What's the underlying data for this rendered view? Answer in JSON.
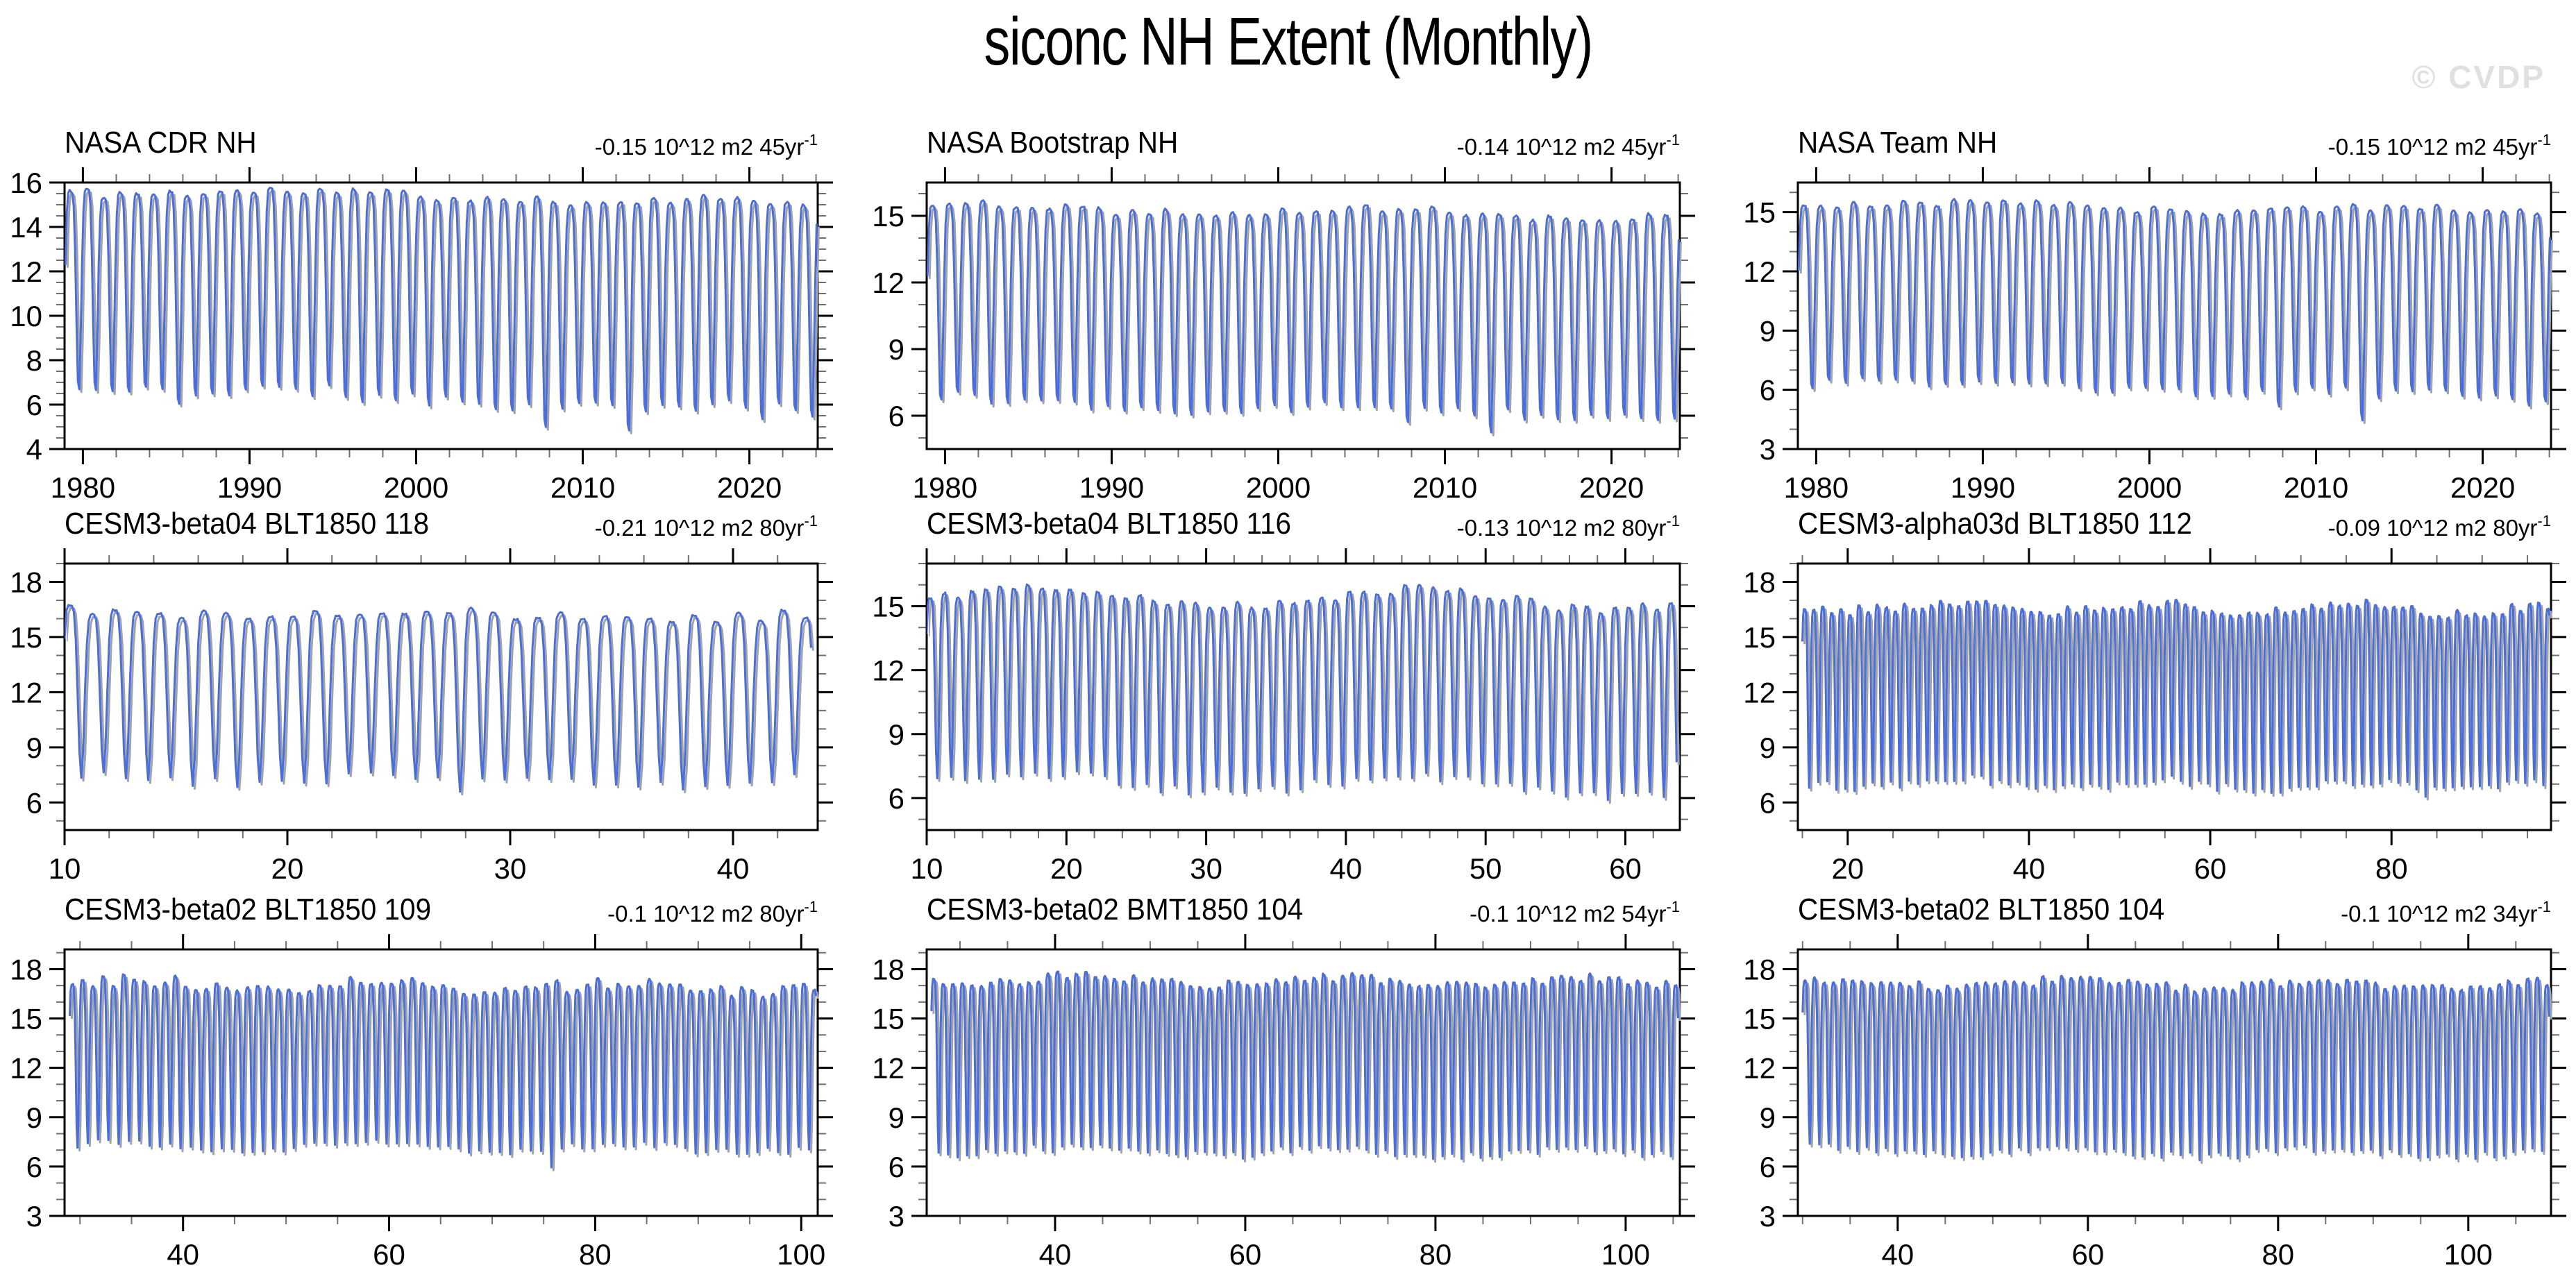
{
  "page": {
    "title": "siconc NH Extent (Monthly)",
    "watermark": "© CVDP"
  },
  "colors": {
    "line": "#4a6edb",
    "shadow": "#a3a3a3",
    "axis": "#000000",
    "minor_tick": "#707070",
    "label": "#000000",
    "watermark": "#e0e0e0",
    "background": "#ffffff"
  },
  "chart_data": [
    {
      "type": "line",
      "title": "NASA CDR NH",
      "trend": {
        "text": "-0.15 10^12 m2 45yr",
        "exp": "-1"
      },
      "xlim": [
        1978.9,
        2024.1
      ],
      "ylim": [
        4,
        16
      ],
      "xticks": [
        1980,
        1990,
        2000,
        2010,
        2020
      ],
      "yticks": [
        4,
        6,
        8,
        10,
        12,
        14,
        16
      ],
      "xminor": 2,
      "yminor": 0.5,
      "grid": false,
      "legend": null,
      "series": {
        "x_start": 1978.95,
        "x_end": 2024.0,
        "winter_start": 15.7,
        "winter_end": 15.05,
        "summer_start": 6.6,
        "summer_end": 5.4,
        "winter_var": 0.45,
        "summer_var": 0.6,
        "mod_amp": 0.15,
        "mod_period": 25,
        "noise": 0.1,
        "dips": {
          "1985": 0.4,
          "1996": 0.3,
          "2007": 0.9,
          "2012": 1.35,
          "2016": 0.5,
          "2020": 0.55
        },
        "seed": 11
      }
    },
    {
      "type": "line",
      "title": "NASA Bootstrap NH",
      "trend": {
        "text": "-0.14 10^12 m2 45yr",
        "exp": "-1"
      },
      "xlim": [
        1978.9,
        2024.1
      ],
      "ylim": [
        4.5,
        16.5
      ],
      "xticks": [
        1980,
        1990,
        2000,
        2010,
        2020
      ],
      "yticks": [
        6,
        9,
        12,
        15
      ],
      "xminor": 2,
      "yminor": 1,
      "grid": false,
      "legend": null,
      "series": {
        "x_start": 1978.95,
        "x_end": 2024.0,
        "winter_start": 15.45,
        "winter_end": 15.0,
        "summer_start": 6.5,
        "summer_end": 5.7,
        "winter_var": 0.4,
        "summer_var": 0.5,
        "mod_amp": 0.15,
        "mod_period": 25,
        "noise": 0.1,
        "dips": {
          "2007": 0.8,
          "2012": 1.05
        },
        "seed": 22
      }
    },
    {
      "type": "line",
      "title": "NASA Team NH",
      "trend": {
        "text": "-0.15 10^12 m2 45yr",
        "exp": "-1"
      },
      "xlim": [
        1978.9,
        2024.1
      ],
      "ylim": [
        3,
        16.5
      ],
      "xticks": [
        1980,
        1990,
        2000,
        2010,
        2020
      ],
      "yticks": [
        3,
        6,
        9,
        12,
        15
      ],
      "xminor": 2,
      "yminor": 1,
      "grid": false,
      "legend": null,
      "series": {
        "x_start": 1978.95,
        "x_end": 2024.0,
        "winter_start": 15.45,
        "winter_end": 15.0,
        "summer_start": 6.2,
        "summer_end": 5.2,
        "winter_var": 0.4,
        "summer_var": 0.55,
        "mod_amp": 0.15,
        "mod_period": 25,
        "noise": 0.1,
        "dips": {
          "2007": 0.85,
          "2012": 1.15
        },
        "seed": 33
      }
    },
    {
      "type": "line",
      "title": "CESM3-beta04 BLT1850 118",
      "trend": {
        "text": "-0.21 10^12 m2 80yr",
        "exp": "-1"
      },
      "xlim": [
        10,
        43.8
      ],
      "ylim": [
        4.5,
        19
      ],
      "xticks": [
        10,
        20,
        30,
        40
      ],
      "yticks": [
        6,
        9,
        12,
        15,
        18
      ],
      "xminor": 2,
      "yminor": 1,
      "grid": false,
      "legend": null,
      "series": {
        "x_start": 10.0,
        "x_end": 43.5,
        "winter_start": 16.35,
        "winter_end": 16.05,
        "summer_start": 7.35,
        "summer_end": 7.1,
        "winter_var": 0.6,
        "summer_var": 0.55,
        "mod_amp": 0.2,
        "mod_period": 18,
        "noise": 0.1,
        "dips": {
          "27": 0.6
        },
        "seed": 44
      }
    },
    {
      "type": "line",
      "title": "CESM3-beta04 BLT1850 116",
      "trend": {
        "text": "-0.13 10^12 m2 80yr",
        "exp": "-1"
      },
      "xlim": [
        10,
        63.9
      ],
      "ylim": [
        4.5,
        17
      ],
      "xticks": [
        10,
        20,
        30,
        40,
        50,
        60
      ],
      "yticks": [
        6,
        9,
        12,
        15
      ],
      "xminor": 2,
      "yminor": 1,
      "grid": false,
      "legend": null,
      "series": {
        "x_start": 10.0,
        "x_end": 63.7,
        "winter_start": 15.5,
        "winter_end": 15.3,
        "summer_start": 6.8,
        "summer_end": 6.5,
        "winter_var": 0.5,
        "summer_var": 0.5,
        "mod_amp": 0.45,
        "mod_period": 27,
        "noise": 0.1,
        "dips": {},
        "seed": 55
      }
    },
    {
      "type": "line",
      "title": "CESM3-alpha03d BLT1850 112",
      "trend": {
        "text": "-0.09 10^12 m2 80yr",
        "exp": "-1"
      },
      "xlim": [
        14.5,
        97.6
      ],
      "ylim": [
        4.5,
        19
      ],
      "xticks": [
        20,
        40,
        60,
        80
      ],
      "yticks": [
        6,
        9,
        12,
        15,
        18
      ],
      "xminor": 5,
      "yminor": 1,
      "grid": false,
      "legend": null,
      "series": {
        "x_start": 15.0,
        "x_end": 97.4,
        "winter_start": 16.7,
        "winter_end": 16.5,
        "summer_start": 7.1,
        "summer_end": 6.9,
        "winter_var": 0.55,
        "summer_var": 0.5,
        "mod_amp": 0.25,
        "mod_period": 22,
        "noise": 0.1,
        "dips": {
          "48": 0.5,
          "83": 0.4
        },
        "seed": 66
      }
    },
    {
      "type": "line",
      "title": "CESM3-beta02 BLT1850 109",
      "trend": {
        "text": "-0.1 10^12 m2 80yr",
        "exp": "-1"
      },
      "xlim": [
        28.5,
        101.6
      ],
      "ylim": [
        3,
        19.2
      ],
      "xticks": [
        40,
        60,
        80,
        100
      ],
      "yticks": [
        3,
        6,
        9,
        12,
        15,
        18
      ],
      "xminor": 5,
      "yminor": 1,
      "grid": false,
      "legend": null,
      "series": {
        "x_start": 29.0,
        "x_end": 101.4,
        "winter_start": 17.1,
        "winter_end": 16.9,
        "summer_start": 7.3,
        "summer_end": 7.1,
        "winter_var": 0.8,
        "summer_var": 0.5,
        "mod_amp": 0.25,
        "mod_period": 24,
        "noise": 0.1,
        "dips": {
          "75": 1.2
        },
        "seed": 77
      }
    },
    {
      "type": "line",
      "title": "CESM3-beta02 BMT1850 104",
      "trend": {
        "text": "-0.1 10^12 m2 54yr",
        "exp": "-1"
      },
      "xlim": [
        26.5,
        105.7
      ],
      "ylim": [
        3,
        19.2
      ],
      "xticks": [
        40,
        60,
        80,
        100
      ],
      "yticks": [
        3,
        6,
        9,
        12,
        15,
        18
      ],
      "xminor": 5,
      "yminor": 1,
      "grid": false,
      "legend": null,
      "series": {
        "x_start": 27.0,
        "x_end": 105.5,
        "winter_start": 17.4,
        "winter_end": 17.2,
        "summer_start": 7.0,
        "summer_end": 6.8,
        "winter_var": 0.55,
        "summer_var": 0.5,
        "mod_amp": 0.25,
        "mod_period": 26,
        "noise": 0.1,
        "dips": {},
        "seed": 88
      }
    },
    {
      "type": "line",
      "title": "CESM3-beta02 BLT1850 104",
      "trend": {
        "text": "-0.1 10^12 m2 34yr",
        "exp": "-1"
      },
      "xlim": [
        29.5,
        108.7
      ],
      "ylim": [
        3,
        19.2
      ],
      "xticks": [
        40,
        60,
        80,
        100
      ],
      "yticks": [
        3,
        6,
        9,
        12,
        15,
        18
      ],
      "xminor": 5,
      "yminor": 1,
      "grid": false,
      "legend": null,
      "series": {
        "x_start": 30.0,
        "x_end": 108.5,
        "winter_start": 17.2,
        "winter_end": 17.0,
        "summer_start": 7.0,
        "summer_end": 6.8,
        "winter_var": 0.55,
        "summer_var": 0.5,
        "mod_amp": 0.25,
        "mod_period": 26,
        "noise": 0.1,
        "dips": {},
        "seed": 99
      }
    }
  ]
}
